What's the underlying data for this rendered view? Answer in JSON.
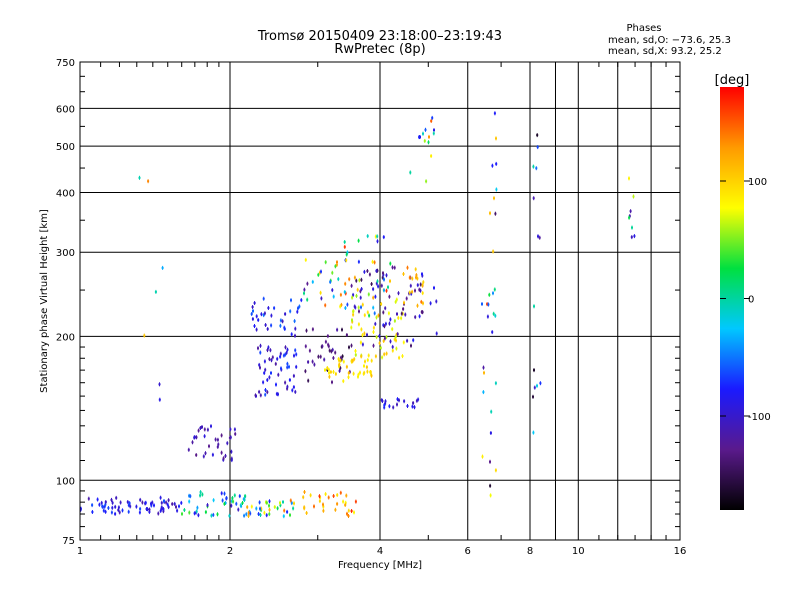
{
  "chart_data": {
    "type": "scatter",
    "title": "Tromsø 20150409 23:18:00–23:19:43",
    "subtitle": "RwPretec (8p)",
    "xlabel": "Frequency [MHz]",
    "ylabel": "Stationary phase Virtual Height [km]",
    "xscale": "log",
    "yscale": "log",
    "xlim": [
      1,
      16
    ],
    "ylim": [
      75,
      750
    ],
    "x_ticks": [
      1,
      2,
      4,
      6,
      8,
      10,
      16
    ],
    "y_ticks": [
      75,
      100,
      200,
      300,
      400,
      500,
      600,
      750
    ],
    "grid": true,
    "stats": {
      "heading": "Phases",
      "line_o": "mean, sd,O: −73.6, 25.3",
      "line_x": "mean, sd,X:  93.2, 25.2"
    },
    "colorbar": {
      "label": "[deg]",
      "range": [
        -180,
        180
      ],
      "ticks": [
        100,
        0,
        -100
      ],
      "colors": [
        "#000000",
        "#5a1a8c",
        "#1a1aff",
        "#00c8ff",
        "#00e040",
        "#ffff00",
        "#ff9a00",
        "#ff0000"
      ]
    },
    "clusters": [
      {
        "f": [
          1.0,
          1.6
        ],
        "h": [
          85,
          92
        ],
        "phase": [
          -120,
          -60
        ],
        "count": 70
      },
      {
        "f": [
          1.6,
          2.15
        ],
        "h": [
          84,
          95
        ],
        "phase": [
          -110,
          40
        ],
        "count": 45
      },
      {
        "f": [
          2.15,
          2.7
        ],
        "h": [
          84,
          91
        ],
        "phase": [
          -90,
          150
        ],
        "count": 35
      },
      {
        "f": [
          2.8,
          3.6
        ],
        "h": [
          84,
          95
        ],
        "phase": [
          80,
          170
        ],
        "count": 30
      },
      {
        "f": [
          1.65,
          2.05
        ],
        "h": [
          110,
          130
        ],
        "phase": [
          -140,
          -90
        ],
        "count": 35
      },
      {
        "f": [
          2.25,
          2.75
        ],
        "h": [
          150,
          195
        ],
        "phase": [
          -120,
          -60
        ],
        "count": 55
      },
      {
        "f": [
          2.2,
          2.8
        ],
        "h": [
          200,
          240
        ],
        "phase": [
          -110,
          -50
        ],
        "count": 35
      },
      {
        "f": [
          2.8,
          3.5
        ],
        "h": [
          160,
          210
        ],
        "phase": [
          -160,
          -110
        ],
        "count": 35
      },
      {
        "f": [
          3.1,
          3.9
        ],
        "h": [
          160,
          180
        ],
        "phase": [
          80,
          110
        ],
        "count": 40
      },
      {
        "f": [
          3.5,
          4.5
        ],
        "h": [
          180,
          240
        ],
        "phase": [
          60,
          110
        ],
        "count": 50
      },
      {
        "f": [
          3.5,
          5.2
        ],
        "h": [
          190,
          280
        ],
        "phase": [
          -150,
          -80
        ],
        "count": 70
      },
      {
        "f": [
          3.3,
          4.2
        ],
        "h": [
          220,
          330
        ],
        "phase": [
          -100,
          170
        ],
        "count": 40
      },
      {
        "f": [
          4.0,
          4.8
        ],
        "h": [
          142,
          148
        ],
        "phase": [
          -110,
          -70
        ],
        "count": 18
      },
      {
        "f": [
          4.4,
          4.9
        ],
        "h": [
          230,
          280
        ],
        "phase": [
          90,
          150
        ],
        "count": 18
      },
      {
        "f": [
          2.8,
          3.7
        ],
        "h": [
          230,
          290
        ],
        "phase": [
          -130,
          160
        ],
        "count": 30
      },
      {
        "f": [
          6.4,
          6.9
        ],
        "h": [
          90,
          600
        ],
        "phase": [
          -170,
          170
        ],
        "count": 30
      },
      {
        "f": [
          8.1,
          8.4
        ],
        "h": [
          110,
          580
        ],
        "phase": [
          -170,
          0
        ],
        "count": 14
      },
      {
        "f": [
          4.6,
          5.2
        ],
        "h": [
          420,
          600
        ],
        "phase": [
          -120,
          160
        ],
        "count": 14
      },
      {
        "f": [
          12.6,
          13.0
        ],
        "h": [
          300,
          580
        ],
        "phase": [
          -140,
          130
        ],
        "count": 8
      },
      {
        "f": [
          1.3,
          1.5
        ],
        "h": [
          140,
          590
        ],
        "phase": [
          -130,
          140
        ],
        "count": 7
      }
    ]
  }
}
